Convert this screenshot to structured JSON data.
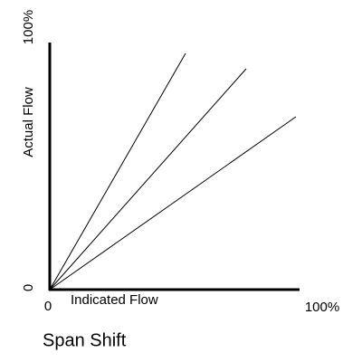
{
  "title": "Span Shift",
  "y_axis": {
    "label": "Actual Flow",
    "min_label": "0",
    "max_label": "100%"
  },
  "x_axis": {
    "label": "Indicated Flow",
    "min_label": "0",
    "max_label": "100%"
  }
}
